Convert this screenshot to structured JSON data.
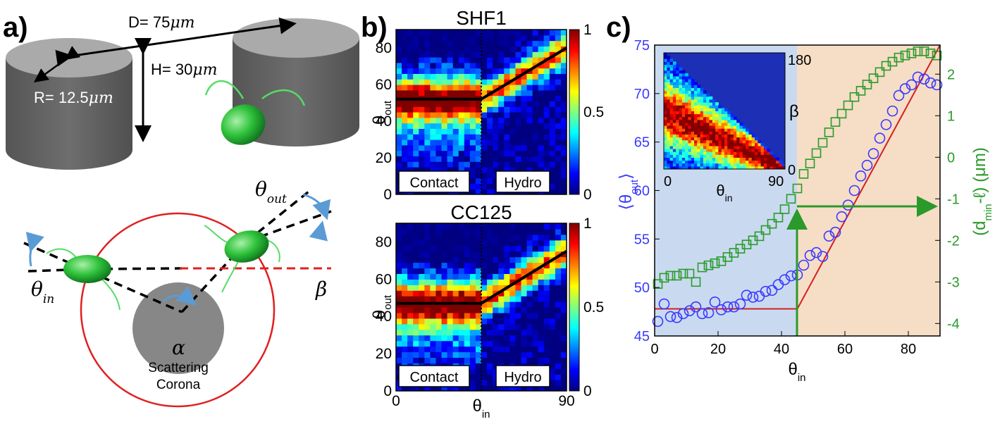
{
  "panel_a": {
    "label": "a)",
    "D_label": "D= 75",
    "H_label": "H= 30",
    "R_label": "R= 12.5",
    "unit": "μm",
    "theta_out": "θ",
    "theta_out_sub": "out",
    "theta_in": "θ",
    "theta_in_sub": "in",
    "beta": "β",
    "alpha": "α",
    "scattering_line1": "Scattering",
    "scattering_line2": "Corona"
  },
  "panel_b": {
    "label": "b)",
    "xlabel": "θ",
    "xlabel_sub": "in",
    "ylabel": "θ",
    "ylabel_sub": "out",
    "contact_label": "Contact",
    "hydro_label": "Hydro",
    "top_title": "SHF1",
    "bottom_title": "CC125",
    "x_ticks": [
      "0",
      "90"
    ],
    "y_ticks": [
      "0",
      "20",
      "40",
      "60",
      "80"
    ],
    "cbar_ticks_top": [
      "0",
      "0.5",
      "1"
    ],
    "cbar_ticks_bottom": [
      "0",
      "0.5",
      "1"
    ]
  },
  "panel_c": {
    "label": "c)",
    "xlabel": "θ",
    "xlabel_sub": "in",
    "ylabel_left": "⟨θ",
    "ylabel_left_sub": "out",
    "ylabel_left_end": "⟩",
    "ylabel_right": "(d",
    "ylabel_right_sub": "min",
    "ylabel_right_end": "-ℓ) (μm)",
    "x_ticks": [
      "0",
      "20",
      "40",
      "60",
      "80"
    ],
    "y_left_ticks": [
      "45",
      "50",
      "55",
      "60",
      "65",
      "70",
      "75"
    ],
    "y_right_ticks": [
      "-4",
      "-3",
      "-2",
      "-1",
      "0",
      "1",
      "2"
    ],
    "inset": {
      "ylabel": "β",
      "xlabel": "θ",
      "xlabel_sub": "in",
      "x_ticks": [
        "0",
        "90"
      ],
      "y_ticks": [
        "0",
        "180"
      ]
    },
    "colors": {
      "circles": "#3a3aff",
      "squares": "#2a9a2a",
      "fit": "#d42020",
      "contact_bg": "#c9daf0",
      "hydro_bg": "#f6ddc6"
    }
  },
  "chart_data": [
    {
      "type": "heatmap",
      "title": "SHF1",
      "xlabel": "θin",
      "ylabel": "θout",
      "xlim": [
        0,
        90
      ],
      "ylim": [
        0,
        90
      ],
      "colorbar": [
        0,
        1
      ],
      "regions": [
        "Contact",
        "Hydro"
      ],
      "threshold_x": 45,
      "fit_line": {
        "x": [
          0,
          45,
          90
        ],
        "y": [
          52,
          52,
          80
        ]
      }
    },
    {
      "type": "heatmap",
      "title": "CC125",
      "xlabel": "θin",
      "ylabel": "θout",
      "xlim": [
        0,
        90
      ],
      "ylim": [
        0,
        90
      ],
      "colorbar": [
        0,
        1
      ],
      "regions": [
        "Contact",
        "Hydro"
      ],
      "threshold_x": 45,
      "fit_line": {
        "x": [
          0,
          45,
          90
        ],
        "y": [
          47,
          47,
          75
        ]
      }
    },
    {
      "type": "scatter",
      "xlabel": "θin",
      "xlim": [
        0,
        90
      ],
      "ylim_left": [
        45,
        75
      ],
      "ylim_right": [
        -4.3,
        2.7
      ],
      "threshold_x": 45,
      "series": [
        {
          "name": "⟨θout⟩",
          "x": [
            1,
            3,
            5,
            7,
            9,
            11,
            13,
            15,
            17,
            19,
            21,
            23,
            25,
            27,
            29,
            31,
            33,
            35,
            37,
            39,
            41,
            43,
            45,
            47,
            49,
            51,
            53,
            55,
            57,
            59,
            61,
            63,
            65,
            67,
            69,
            71,
            73,
            75,
            77,
            79,
            81,
            83,
            85,
            87,
            89
          ],
          "y": [
            46.5,
            48.3,
            47.0,
            46.9,
            47.3,
            47.6,
            48.0,
            47.3,
            47.4,
            48.5,
            47.7,
            48.0,
            48.0,
            48.3,
            49.2,
            49.0,
            49.1,
            49.6,
            49.7,
            50.3,
            50.8,
            51.2,
            51.3,
            52.3,
            53.3,
            53.6,
            53.2,
            55.3,
            55.7,
            57.3,
            58.5,
            60.0,
            61.5,
            62.6,
            63.8,
            65.4,
            66.8,
            68.2,
            69.8,
            70.5,
            70.9,
            71.7,
            71.5,
            71.1,
            70.9
          ]
        },
        {
          "name": "(dmin-ℓ)",
          "x": [
            1,
            3,
            5,
            7,
            9,
            11,
            13,
            15,
            17,
            19,
            21,
            23,
            25,
            27,
            29,
            31,
            33,
            35,
            37,
            39,
            41,
            43,
            45,
            47,
            49,
            51,
            53,
            55,
            57,
            59,
            61,
            63,
            65,
            67,
            69,
            71,
            73,
            75,
            77,
            79,
            81,
            83,
            85,
            87,
            89
          ],
          "y": [
            -3.05,
            -2.9,
            -2.85,
            -2.85,
            -2.8,
            -2.8,
            -3.0,
            -2.65,
            -2.6,
            -2.55,
            -2.5,
            -2.4,
            -2.3,
            -2.2,
            -2.1,
            -2.0,
            -1.9,
            -1.75,
            -1.6,
            -1.45,
            -1.25,
            -1.0,
            -0.75,
            -0.4,
            -0.15,
            0.1,
            0.35,
            0.6,
            0.85,
            1.05,
            1.25,
            1.45,
            1.6,
            1.75,
            1.9,
            2.05,
            2.2,
            2.3,
            2.4,
            2.45,
            2.5,
            2.55,
            2.55,
            2.5,
            2.45
          ]
        },
        {
          "name": "fit",
          "x": [
            0,
            45,
            90
          ],
          "y": [
            47.8,
            47.8,
            75
          ]
        }
      ],
      "inset": {
        "type": "heatmap",
        "xlabel": "θin",
        "ylabel": "β",
        "xlim": [
          0,
          90
        ],
        "ylim": [
          0,
          180
        ]
      }
    }
  ]
}
